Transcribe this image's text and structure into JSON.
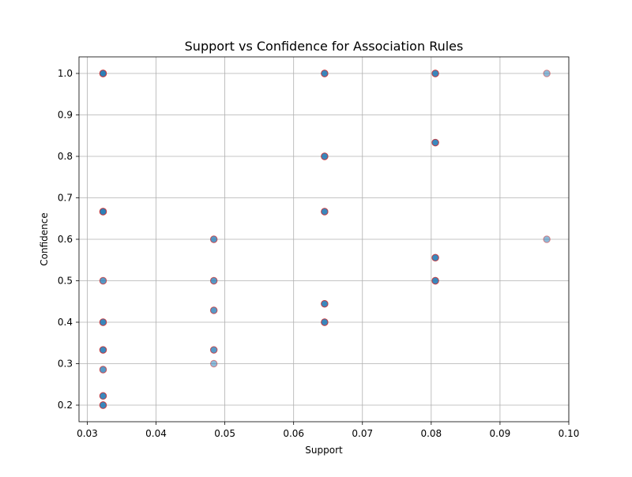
{
  "chart_data": {
    "type": "scatter",
    "title": "Support vs Confidence for Association Rules",
    "xlabel": "Support",
    "ylabel": "Confidence",
    "xlim": [
      0.0288,
      0.1
    ],
    "ylim": [
      0.16,
      1.04
    ],
    "xticks": [
      0.03,
      0.04,
      0.05,
      0.06,
      0.07,
      0.08,
      0.09,
      0.1
    ],
    "xtick_labels": [
      "0.03",
      "0.04",
      "0.05",
      "0.06",
      "0.07",
      "0.08",
      "0.09",
      "0.10"
    ],
    "yticks": [
      0.2,
      0.3,
      0.4,
      0.5,
      0.6,
      0.7,
      0.8,
      0.9,
      1.0
    ],
    "ytick_labels": [
      "0.2",
      "0.3",
      "0.4",
      "0.5",
      "0.6",
      "0.7",
      "0.8",
      "0.9",
      "1.0"
    ],
    "grid": true,
    "marker_face_color": "#1f77b4",
    "marker_edge_color": "#d62728",
    "marker_alpha": 0.5,
    "points": [
      {
        "x": 0.0323,
        "y": 1.0,
        "count": 4
      },
      {
        "x": 0.0323,
        "y": 0.6667,
        "count": 4
      },
      {
        "x": 0.0323,
        "y": 0.5,
        "count": 2
      },
      {
        "x": 0.0323,
        "y": 0.4,
        "count": 3
      },
      {
        "x": 0.0323,
        "y": 0.3333,
        "count": 3
      },
      {
        "x": 0.0323,
        "y": 0.2857,
        "count": 2
      },
      {
        "x": 0.0323,
        "y": 0.2222,
        "count": 3
      },
      {
        "x": 0.0323,
        "y": 0.2,
        "count": 3
      },
      {
        "x": 0.0484,
        "y": 0.6,
        "count": 2
      },
      {
        "x": 0.0484,
        "y": 0.5,
        "count": 2
      },
      {
        "x": 0.0484,
        "y": 0.4286,
        "count": 2
      },
      {
        "x": 0.0484,
        "y": 0.3333,
        "count": 2
      },
      {
        "x": 0.0484,
        "y": 0.3,
        "count": 1
      },
      {
        "x": 0.0645,
        "y": 1.0,
        "count": 3
      },
      {
        "x": 0.0645,
        "y": 0.8,
        "count": 3
      },
      {
        "x": 0.0645,
        "y": 0.6667,
        "count": 3
      },
      {
        "x": 0.0645,
        "y": 0.4444,
        "count": 3
      },
      {
        "x": 0.0645,
        "y": 0.4,
        "count": 3
      },
      {
        "x": 0.0806,
        "y": 1.0,
        "count": 3
      },
      {
        "x": 0.0806,
        "y": 0.8333,
        "count": 3
      },
      {
        "x": 0.0806,
        "y": 0.5556,
        "count": 3
      },
      {
        "x": 0.0806,
        "y": 0.5,
        "count": 3
      },
      {
        "x": 0.0968,
        "y": 1.0,
        "count": 1
      },
      {
        "x": 0.0968,
        "y": 0.6,
        "count": 1
      }
    ]
  }
}
